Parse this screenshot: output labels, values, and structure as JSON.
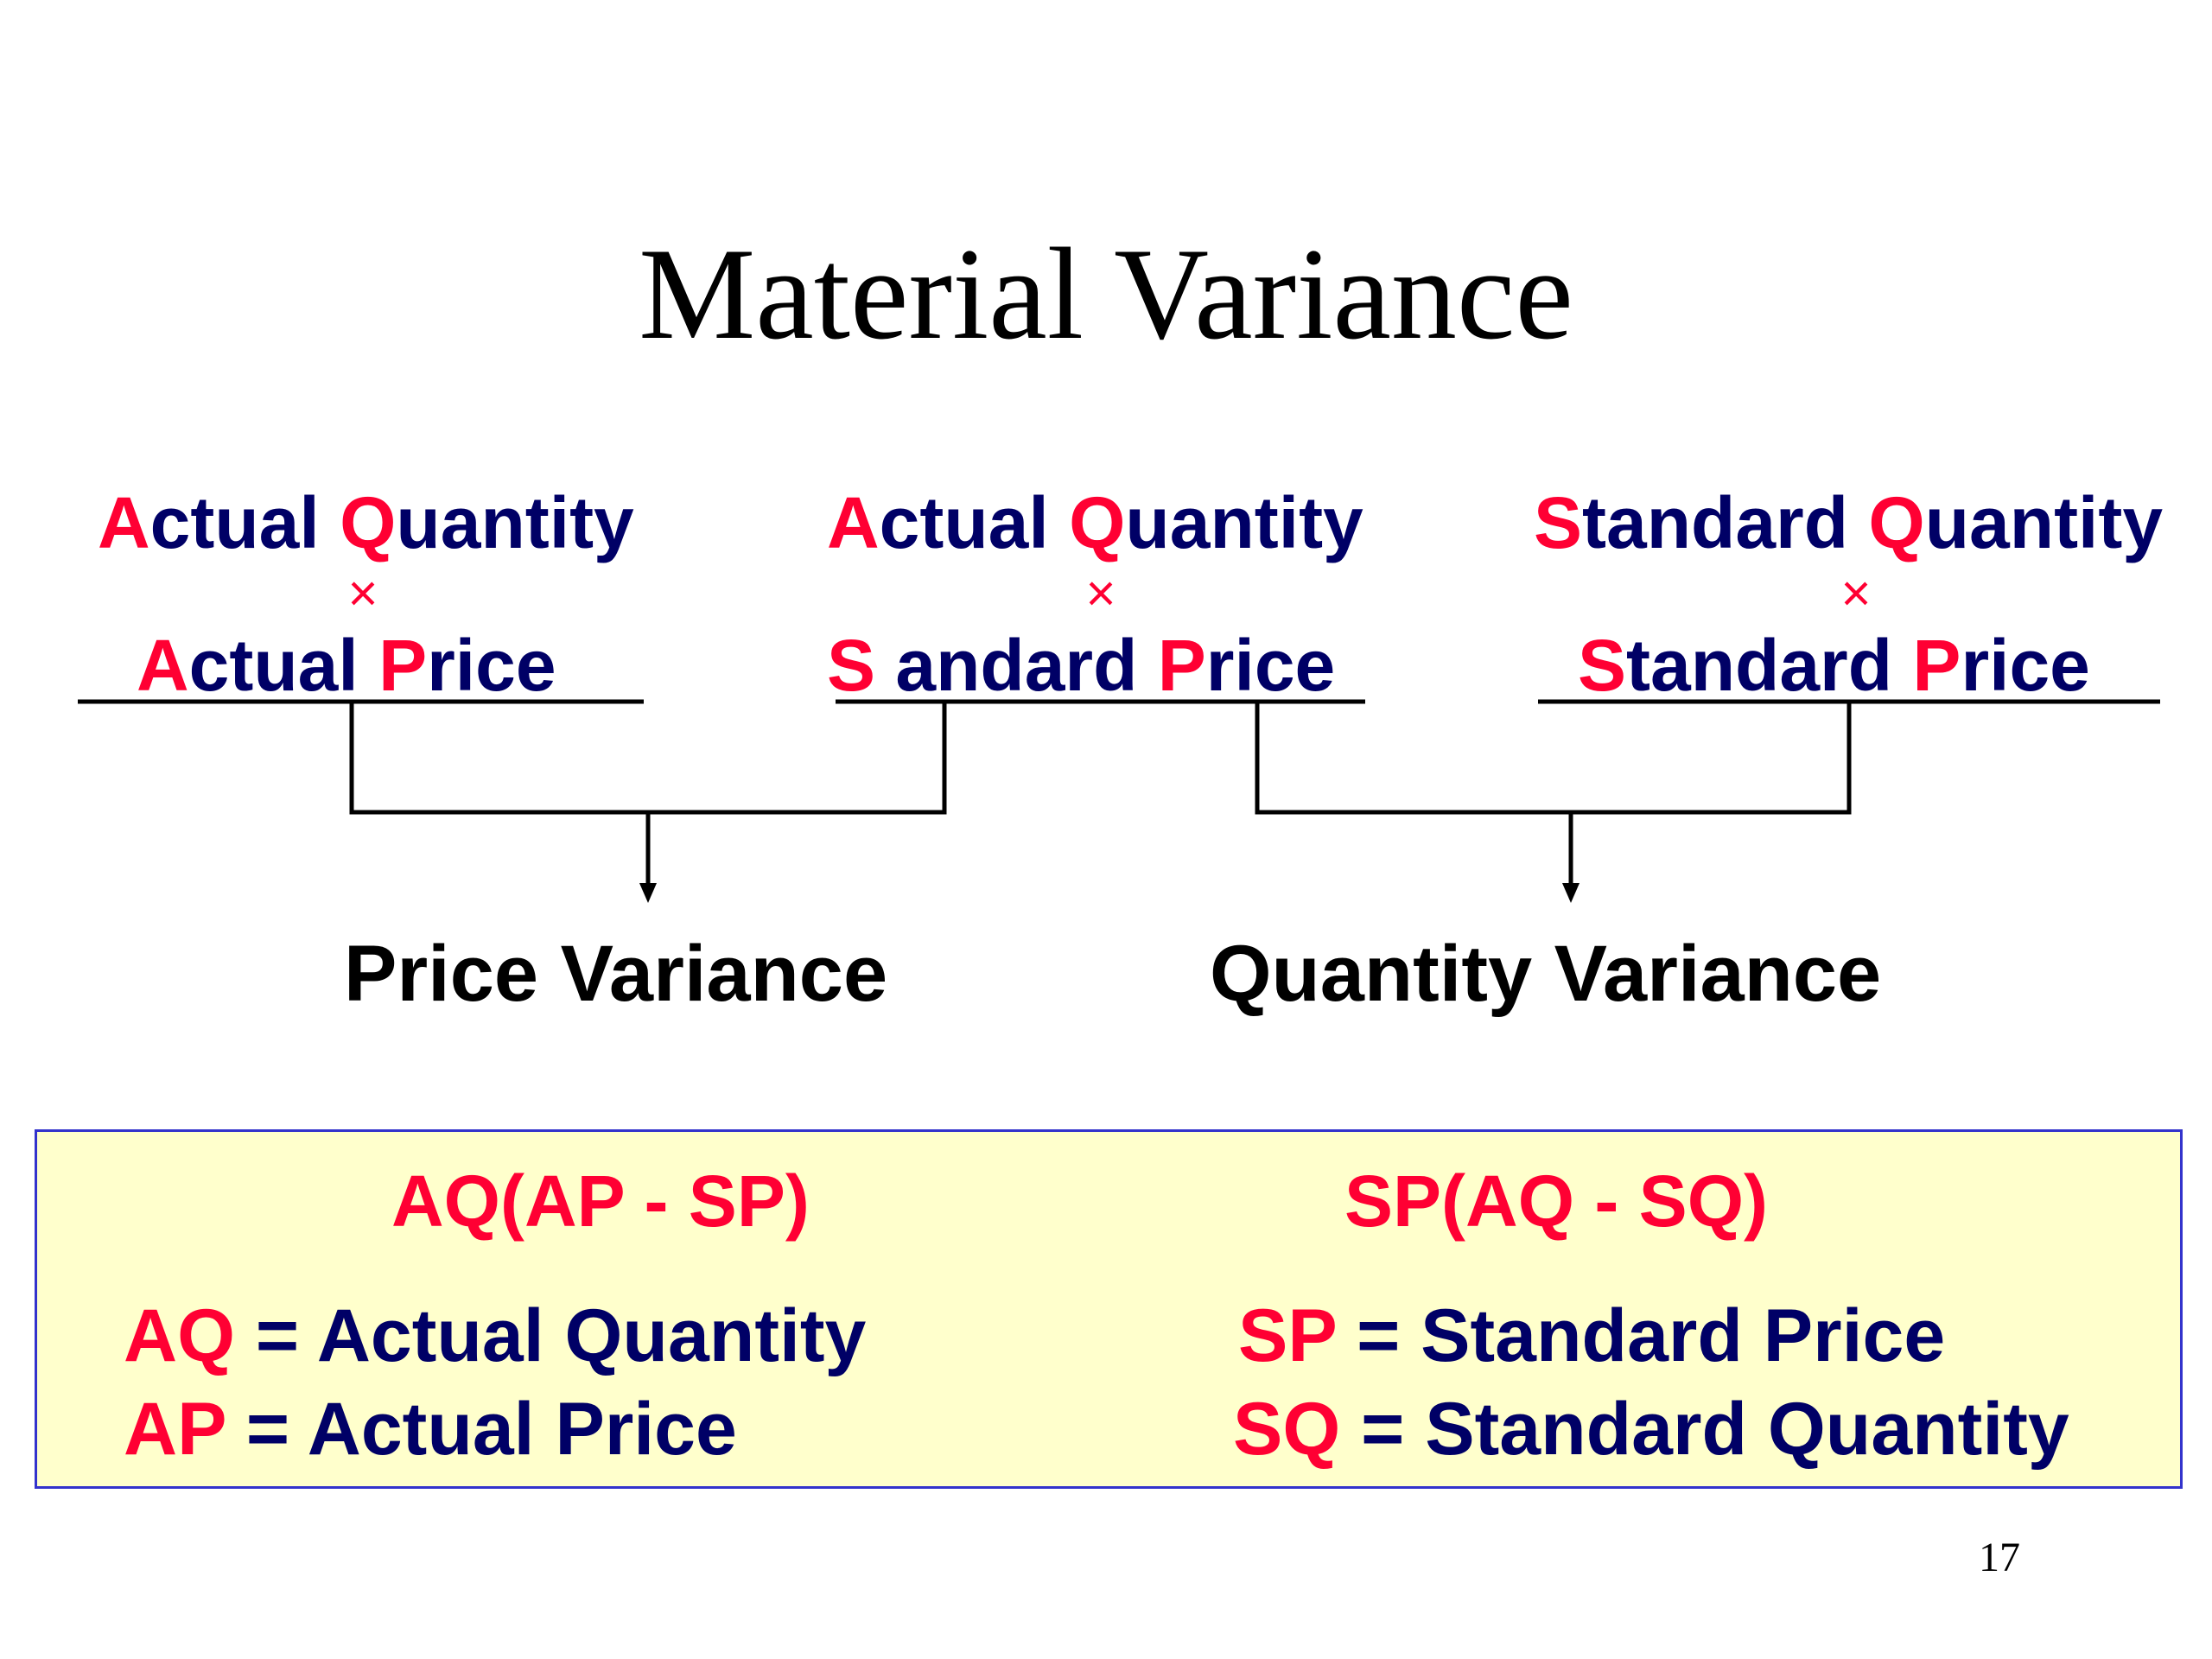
{
  "title": "Material Variance",
  "columns": [
    {
      "qty_initial_a": "A",
      "qty_rest_a": "ctual ",
      "qty_initial_b": "Q",
      "qty_rest_b": "uantity",
      "times": "×",
      "price_initial_a": "A",
      "price_rest_a": "ctual ",
      "price_initial_b": "P",
      "price_rest_b": "rice"
    },
    {
      "qty_initial_a": "A",
      "qty_rest_a": "ctual ",
      "qty_initial_b": "Q",
      "qty_rest_b": "uantity",
      "times": "×",
      "price_initial_a": "S",
      "price_rest_a": " andard ",
      "price_initial_b": "P",
      "price_rest_b": "rice"
    },
    {
      "qty_initial_a": "S",
      "qty_rest_a": "tandard ",
      "qty_initial_b": "Q",
      "qty_rest_b": "uantity",
      "times": "×",
      "price_initial_a": "S",
      "price_rest_a": "tandard ",
      "price_initial_b": "P",
      "price_rest_b": "rice"
    }
  ],
  "results": {
    "price_variance": "Price Variance",
    "quantity_variance": "Quantity Variance"
  },
  "formulas": {
    "price": "AQ(AP - SP)",
    "quantity": "SP(AQ - SQ)"
  },
  "legend": {
    "aq_abbr": "AQ",
    "aq_def": " = Actual Quantity",
    "ap_abbr": "AP",
    "ap_def": " = Actual Price",
    "sp_abbr": "SP",
    "sp_def": " = Standard Price",
    "sq_abbr": "SQ",
    "sq_def": " = Standard Quantity"
  },
  "page_number": "17",
  "colors": {
    "accent_red": "#ff0033",
    "navy_text": "#000066",
    "box_fill": "#ffffcc",
    "box_border": "#3333cc"
  }
}
